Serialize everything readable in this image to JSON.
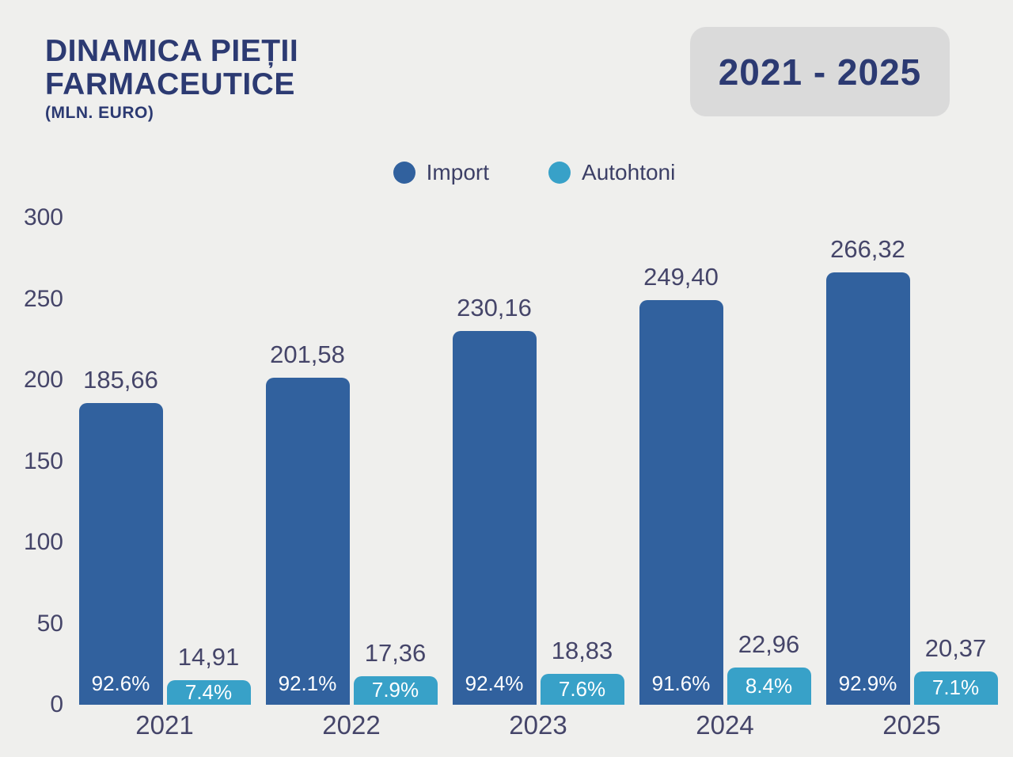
{
  "header": {
    "title_line1": "DINAMICA PIEȚII",
    "title_line2": "FARMACEUTICE",
    "unit": "(MLN. EURO)",
    "period": "2021 - 2025"
  },
  "legend": [
    {
      "label": "Import",
      "color": "#31619e"
    },
    {
      "label": "Autohtoni",
      "color": "#38a1c8"
    }
  ],
  "colors": {
    "background": "#efefed",
    "badge_bg": "#dadada",
    "title_text": "#2c3a72",
    "axis_text": "#454569",
    "import_bar": "#31619e",
    "autohtoni_bar": "#38a1c8",
    "percent_text": "#ffffff"
  },
  "chart_data": {
    "type": "bar",
    "title": "DINAMICA PIEȚII FARMACEUTICE (MLN. EURO)",
    "categories": [
      "2021",
      "2022",
      "2023",
      "2024",
      "2025"
    ],
    "series": [
      {
        "name": "Import",
        "values": [
          185.66,
          201.58,
          230.16,
          249.4,
          266.32
        ],
        "display": [
          "185,66",
          "201,58",
          "230,16",
          "249,40",
          "266,32"
        ],
        "percent": [
          "92.6%",
          "92.1%",
          "92.4%",
          "91.6%",
          "92.9%"
        ]
      },
      {
        "name": "Autohtoni",
        "values": [
          14.91,
          17.36,
          18.83,
          22.96,
          20.37
        ],
        "display": [
          "14,91",
          "17,36",
          "18,83",
          "22,96",
          "20,37"
        ],
        "percent": [
          "7.4%",
          "7.9%",
          "7.6%",
          "8.4%",
          "7.1%"
        ]
      }
    ],
    "xlabel": "",
    "ylabel": "",
    "ylim": [
      0,
      300
    ],
    "yticks": [
      0,
      50,
      100,
      150,
      200,
      250,
      300
    ],
    "grid": false,
    "legend_position": "top"
  }
}
